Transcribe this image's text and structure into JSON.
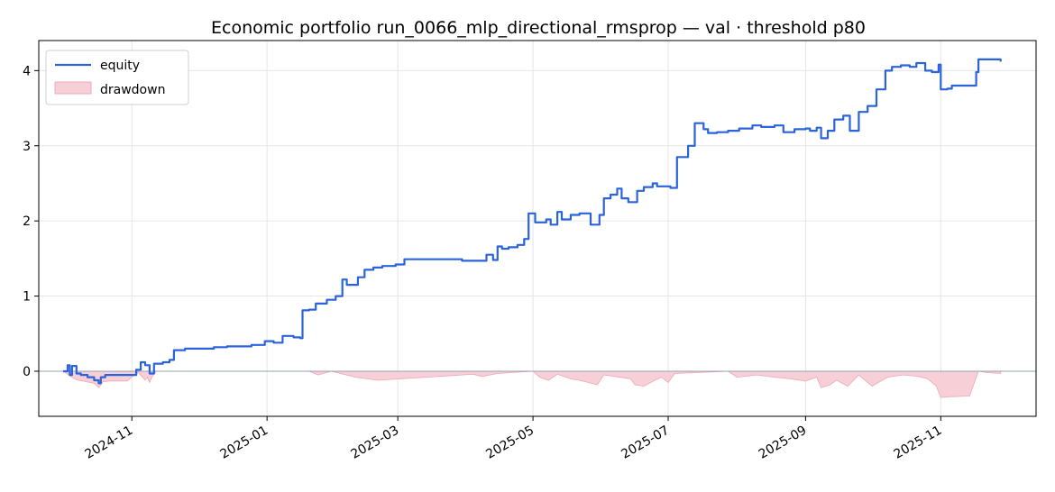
{
  "chart_data": {
    "type": "line",
    "title": "Economic portfolio run_0066_mlp_directional_rmsprop — val · threshold p80",
    "xlabel": "",
    "ylabel": "",
    "x_range": [
      "2024-09-20",
      "2025-12-14"
    ],
    "ylim": [
      -0.6,
      4.4
    ],
    "x_ticks": [
      "2024-11",
      "2025-01",
      "2025-03",
      "2025-05",
      "2025-07",
      "2025-09",
      "2025-11"
    ],
    "x_tick_dates": [
      "2024-11-01",
      "2025-01-01",
      "2025-03-01",
      "2025-05-01",
      "2025-07-01",
      "2025-09-01",
      "2025-11-01"
    ],
    "y_ticks": [
      0,
      1,
      2,
      3,
      4
    ],
    "grid": true,
    "legend": "top-left",
    "colors": {
      "equity": "#2b63db",
      "drawdown_fill": "#f7cfd7",
      "drawdown_edge": "#f0a8b5",
      "zero_line": "#9aa0b0"
    },
    "series": [
      {
        "name": "equity",
        "kind": "line",
        "x": [
          "2024-10-01",
          "2024-10-03",
          "2024-10-04",
          "2024-10-05",
          "2024-10-07",
          "2024-10-09",
          "2024-10-12",
          "2024-10-15",
          "2024-10-17",
          "2024-10-18",
          "2024-10-20",
          "2024-10-23",
          "2024-10-26",
          "2024-10-29",
          "2024-11-01",
          "2024-11-03",
          "2024-11-05",
          "2024-11-07",
          "2024-11-09",
          "2024-11-11",
          "2024-11-15",
          "2024-11-18",
          "2024-11-20",
          "2024-11-25",
          "2024-12-01",
          "2024-12-08",
          "2024-12-14",
          "2024-12-19",
          "2024-12-25",
          "2024-12-31",
          "2025-01-04",
          "2025-01-08",
          "2025-01-13",
          "2025-01-16",
          "2025-01-17",
          "2025-01-20",
          "2025-01-23",
          "2025-01-28",
          "2025-02-01",
          "2025-02-04",
          "2025-02-06",
          "2025-02-11",
          "2025-02-14",
          "2025-02-18",
          "2025-02-22",
          "2025-02-28",
          "2025-03-04",
          "2025-03-10",
          "2025-03-20",
          "2025-03-30",
          "2025-04-05",
          "2025-04-10",
          "2025-04-13",
          "2025-04-15",
          "2025-04-17",
          "2025-04-20",
          "2025-04-24",
          "2025-04-27",
          "2025-04-29",
          "2025-05-02",
          "2025-05-05",
          "2025-05-07",
          "2025-05-09",
          "2025-05-12",
          "2025-05-14",
          "2025-05-18",
          "2025-05-22",
          "2025-05-27",
          "2025-05-31",
          "2025-06-02",
          "2025-06-05",
          "2025-06-08",
          "2025-06-10",
          "2025-06-13",
          "2025-06-17",
          "2025-06-20",
          "2025-06-24",
          "2025-06-26",
          "2025-06-28",
          "2025-07-02",
          "2025-07-05",
          "2025-07-10",
          "2025-07-13",
          "2025-07-17",
          "2025-07-19",
          "2025-07-23",
          "2025-07-28",
          "2025-08-02",
          "2025-08-08",
          "2025-08-12",
          "2025-08-18",
          "2025-08-22",
          "2025-08-27",
          "2025-09-01",
          "2025-09-03",
          "2025-09-06",
          "2025-09-08",
          "2025-09-11",
          "2025-09-14",
          "2025-09-18",
          "2025-09-21",
          "2025-09-25",
          "2025-09-29",
          "2025-10-03",
          "2025-10-07",
          "2025-10-10",
          "2025-10-14",
          "2025-10-18",
          "2025-10-21",
          "2025-10-25",
          "2025-10-28",
          "2025-10-31",
          "2025-11-01",
          "2025-11-04",
          "2025-11-06",
          "2025-11-10",
          "2025-11-14",
          "2025-11-17",
          "2025-11-18",
          "2025-11-21",
          "2025-11-24",
          "2025-11-28"
        ],
        "y": [
          0.0,
          0.08,
          -0.05,
          0.07,
          -0.03,
          -0.05,
          -0.08,
          -0.12,
          -0.16,
          -0.08,
          -0.05,
          -0.05,
          -0.05,
          -0.05,
          -0.05,
          0.02,
          0.12,
          0.08,
          -0.03,
          0.1,
          0.12,
          0.15,
          0.28,
          0.3,
          0.3,
          0.32,
          0.33,
          0.33,
          0.35,
          0.4,
          0.38,
          0.47,
          0.45,
          0.44,
          0.81,
          0.82,
          0.9,
          0.95,
          1.0,
          1.22,
          1.15,
          1.25,
          1.35,
          1.38,
          1.4,
          1.42,
          1.49,
          1.49,
          1.49,
          1.47,
          1.47,
          1.55,
          1.48,
          1.66,
          1.63,
          1.65,
          1.68,
          1.76,
          2.1,
          1.98,
          1.98,
          2.02,
          1.95,
          2.12,
          2.02,
          2.08,
          2.1,
          1.95,
          2.08,
          2.3,
          2.35,
          2.43,
          2.3,
          2.25,
          2.4,
          2.45,
          2.5,
          2.46,
          2.46,
          2.44,
          2.85,
          3.0,
          3.3,
          3.22,
          3.17,
          3.18,
          3.2,
          3.23,
          3.27,
          3.25,
          3.27,
          3.18,
          3.22,
          3.23,
          3.2,
          3.24,
          3.1,
          3.2,
          3.35,
          3.4,
          3.2,
          3.45,
          3.53,
          3.75,
          4.0,
          4.05,
          4.07,
          4.05,
          4.1,
          4.0,
          3.98,
          4.08,
          3.75,
          3.76,
          3.8,
          3.8,
          3.8,
          3.98,
          4.15,
          4.15,
          4.15,
          4.12
        ]
      },
      {
        "name": "drawdown",
        "kind": "area",
        "x": [
          "2024-10-01",
          "2024-10-04",
          "2024-10-06",
          "2024-10-08",
          "2024-10-10",
          "2024-10-13",
          "2024-10-15",
          "2024-10-17",
          "2024-10-19",
          "2024-10-22",
          "2024-10-30",
          "2024-11-02",
          "2024-11-04",
          "2024-11-07",
          "2024-11-08",
          "2024-11-09",
          "2024-11-10",
          "2024-11-12",
          "2025-01-20",
          "2025-01-24",
          "2025-01-30",
          "2025-02-10",
          "2025-02-20",
          "2025-03-30",
          "2025-04-04",
          "2025-04-08",
          "2025-04-15",
          "2025-05-01",
          "2025-05-04",
          "2025-05-08",
          "2025-05-12",
          "2025-05-18",
          "2025-05-22",
          "2025-05-30",
          "2025-06-02",
          "2025-06-14",
          "2025-06-16",
          "2025-06-20",
          "2025-06-25",
          "2025-06-28",
          "2025-07-01",
          "2025-07-04",
          "2025-07-28",
          "2025-08-01",
          "2025-08-10",
          "2025-08-18",
          "2025-08-25",
          "2025-09-01",
          "2025-09-06",
          "2025-09-08",
          "2025-09-12",
          "2025-09-15",
          "2025-09-20",
          "2025-09-25",
          "2025-10-01",
          "2025-10-08",
          "2025-10-15",
          "2025-10-22",
          "2025-10-26",
          "2025-10-30",
          "2025-11-01",
          "2025-11-05",
          "2025-11-14",
          "2025-11-18",
          "2025-11-22",
          "2025-11-28"
        ],
        "y": [
          0.0,
          -0.06,
          -0.1,
          -0.12,
          -0.13,
          -0.15,
          -0.16,
          -0.22,
          -0.14,
          -0.13,
          -0.13,
          -0.05,
          -0.02,
          -0.12,
          -0.08,
          -0.15,
          -0.08,
          0.0,
          0.0,
          -0.05,
          0.0,
          -0.08,
          -0.12,
          -0.05,
          -0.04,
          -0.07,
          -0.03,
          0.0,
          -0.08,
          -0.12,
          -0.04,
          -0.1,
          -0.12,
          -0.18,
          -0.05,
          -0.1,
          -0.18,
          -0.2,
          -0.12,
          -0.08,
          -0.15,
          -0.03,
          0.0,
          -0.08,
          -0.05,
          -0.08,
          -0.1,
          -0.13,
          -0.08,
          -0.22,
          -0.18,
          -0.12,
          -0.2,
          -0.05,
          -0.2,
          -0.08,
          -0.05,
          -0.07,
          -0.1,
          -0.2,
          -0.35,
          -0.34,
          -0.33,
          0.0,
          -0.02,
          -0.03
        ]
      }
    ]
  }
}
